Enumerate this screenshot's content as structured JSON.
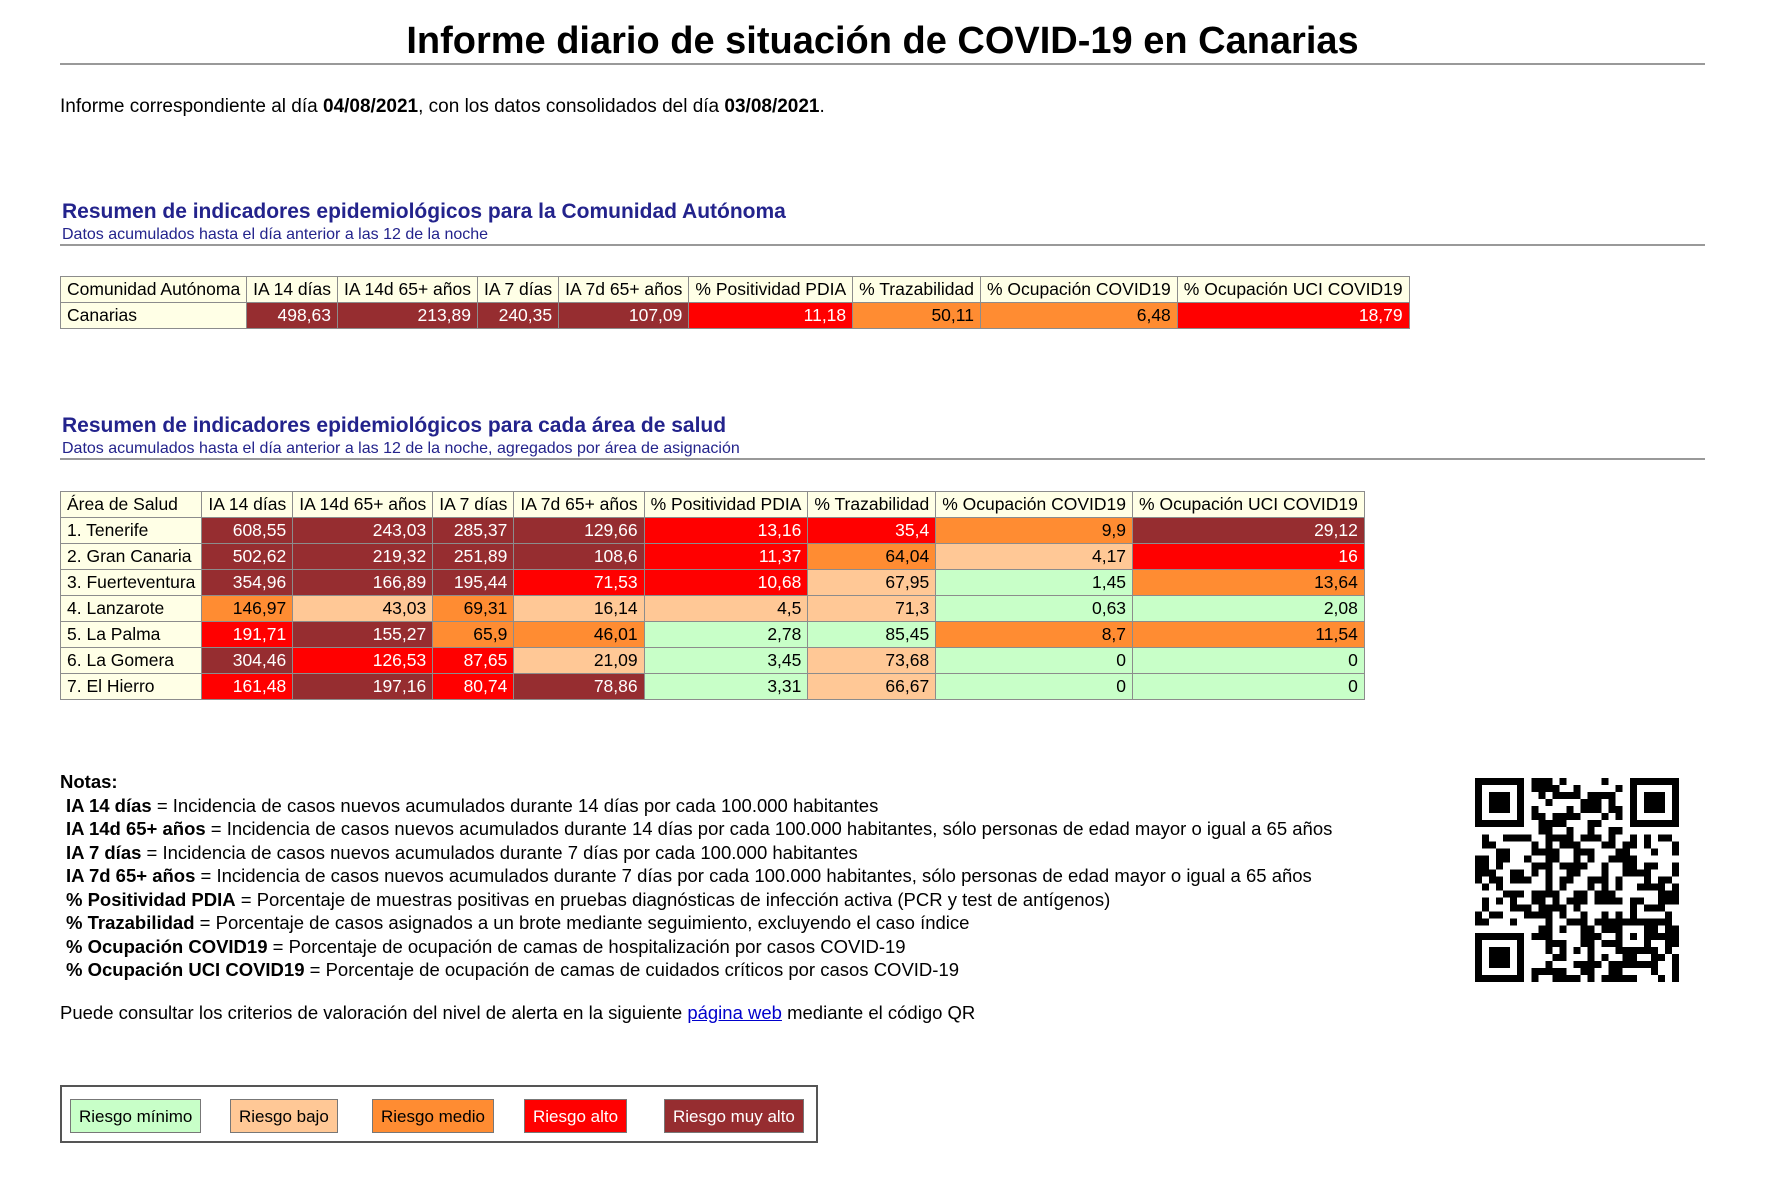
{
  "header": {
    "title": "Informe diario de situación de COVID-19 en Canarias",
    "report_prefix": "Informe correspondiente al día ",
    "report_date": "04/08/2021",
    "report_middle": ", con los datos consolidados del día ",
    "data_date": "03/08/2021",
    "report_suffix": "."
  },
  "section1": {
    "title": "Resumen de indicadores epidemiológicos para la Comunidad Autónoma",
    "subtitle": "Datos acumulados hasta el día anterior a las 12 de la noche",
    "columns": [
      "Comunidad Autónoma",
      "IA 14 días",
      "IA 14d 65+ años",
      "IA 7 días",
      "IA 7d 65+ años",
      "% Positividad PDIA",
      "% Trazabilidad",
      "% Ocupación COVID19",
      "% Ocupación UCI COVID19"
    ],
    "rows": [
      {
        "name": "Canarias",
        "values": [
          "498,63",
          "213,89",
          "240,35",
          "107,09",
          "11,18",
          "50,11",
          "6,48",
          "18,79"
        ],
        "risk": [
          "muyalto",
          "muyalto",
          "muyalto",
          "muyalto",
          "alto",
          "medio",
          "medio",
          "alto"
        ]
      }
    ]
  },
  "section2": {
    "title": "Resumen de indicadores epidemiológicos para cada área de salud",
    "subtitle": "Datos acumulados hasta el día anterior a las 12 de la noche, agregados por área de asignación",
    "columns": [
      "Área de Salud",
      "IA 14 días",
      "IA 14d 65+ años",
      "IA 7 días",
      "IA 7d 65+ años",
      "% Positividad PDIA",
      "% Trazabilidad",
      "% Ocupación COVID19",
      "% Ocupación UCI COVID19"
    ],
    "rows": [
      {
        "name": "1. Tenerife",
        "values": [
          "608,55",
          "243,03",
          "285,37",
          "129,66",
          "13,16",
          "35,4",
          "9,9",
          "29,12"
        ],
        "risk": [
          "muyalto",
          "muyalto",
          "muyalto",
          "muyalto",
          "alto",
          "alto",
          "medio",
          "muyalto"
        ]
      },
      {
        "name": "2. Gran Canaria",
        "values": [
          "502,62",
          "219,32",
          "251,89",
          "108,6",
          "11,37",
          "64,04",
          "4,17",
          "16"
        ],
        "risk": [
          "muyalto",
          "muyalto",
          "muyalto",
          "muyalto",
          "alto",
          "medio",
          "bajo",
          "alto"
        ]
      },
      {
        "name": "3. Fuerteventura",
        "values": [
          "354,96",
          "166,89",
          "195,44",
          "71,53",
          "10,68",
          "67,95",
          "1,45",
          "13,64"
        ],
        "risk": [
          "muyalto",
          "muyalto",
          "muyalto",
          "alto",
          "alto",
          "bajo",
          "minimo",
          "medio"
        ]
      },
      {
        "name": "4. Lanzarote",
        "values": [
          "146,97",
          "43,03",
          "69,31",
          "16,14",
          "4,5",
          "71,3",
          "0,63",
          "2,08"
        ],
        "risk": [
          "medio",
          "bajo",
          "medio",
          "bajo",
          "bajo",
          "bajo",
          "minimo",
          "minimo"
        ]
      },
      {
        "name": "5. La Palma",
        "values": [
          "191,71",
          "155,27",
          "65,9",
          "46,01",
          "2,78",
          "85,45",
          "8,7",
          "11,54"
        ],
        "risk": [
          "alto",
          "muyalto",
          "medio",
          "medio",
          "minimo",
          "minimo",
          "medio",
          "medio"
        ]
      },
      {
        "name": "6. La Gomera",
        "values": [
          "304,46",
          "126,53",
          "87,65",
          "21,09",
          "3,45",
          "73,68",
          "0",
          "0"
        ],
        "risk": [
          "muyalto",
          "alto",
          "alto",
          "bajo",
          "minimo",
          "bajo",
          "minimo",
          "minimo"
        ]
      },
      {
        "name": "7. El Hierro",
        "values": [
          "161,48",
          "197,16",
          "80,74",
          "78,86",
          "3,31",
          "66,67",
          "0",
          "0"
        ],
        "risk": [
          "alto",
          "muyalto",
          "alto",
          "muyalto",
          "minimo",
          "bajo",
          "minimo",
          "minimo"
        ]
      }
    ]
  },
  "notes": {
    "heading": "Notas:",
    "items": [
      {
        "term": "IA 14 días",
        "def": " = Incidencia de casos nuevos acumulados durante 14 días por cada 100.000 habitantes"
      },
      {
        "term": "IA 14d 65+ años",
        "def": " = Incidencia de casos nuevos acumulados durante 14 días por cada 100.000 habitantes, sólo personas de edad mayor o igual a 65 años"
      },
      {
        "term": "IA 7 días",
        "def": " = Incidencia de casos nuevos acumulados durante 7 días por cada 100.000 habitantes"
      },
      {
        "term": "IA 7d 65+ años",
        "def": " = Incidencia de casos nuevos acumulados durante 7 días por cada 100.000 habitantes, sólo personas de edad mayor o igual a 65 años"
      },
      {
        "term": "% Positividad PDIA",
        "def": " = Porcentaje de muestras positivas en pruebas diagnósticas de infección activa (PCR y test de antígenos)"
      },
      {
        "term": "% Trazabilidad",
        "def": " = Porcentaje de casos asignados a un brote mediante seguimiento, excluyendo el caso índice"
      },
      {
        "term": "% Ocupación COVID19",
        "def": " = Porcentaje de ocupación de camas de hospitalización por casos COVID-19"
      },
      {
        "term": "% Ocupación UCI COVID19",
        "def": " = Porcentaje de ocupación de camas de cuidados críticos por casos COVID-19"
      }
    ]
  },
  "consult": {
    "prefix": "Puede consultar los criterios de valoración del nivel de alerta en la siguiente ",
    "link": "página web",
    "suffix": " mediante el código QR"
  },
  "legend": [
    {
      "label": "Riesgo mínimo",
      "class": "minimo"
    },
    {
      "label": "Riesgo bajo",
      "class": "bajo"
    },
    {
      "label": "Riesgo medio",
      "class": "medio"
    },
    {
      "label": "Riesgo alto",
      "class": "alto"
    },
    {
      "label": "Riesgo muy alto",
      "class": "muyalto"
    }
  ],
  "colors": {
    "muyalto": "#962d30",
    "alto": "#ff0000",
    "medio": "#ff8c32",
    "bajo": "#ffc896",
    "minimo": "#c8ffc8",
    "heading": "#23238c",
    "link": "#0000cc"
  },
  "qr": {
    "icon": "qr-code-icon"
  }
}
